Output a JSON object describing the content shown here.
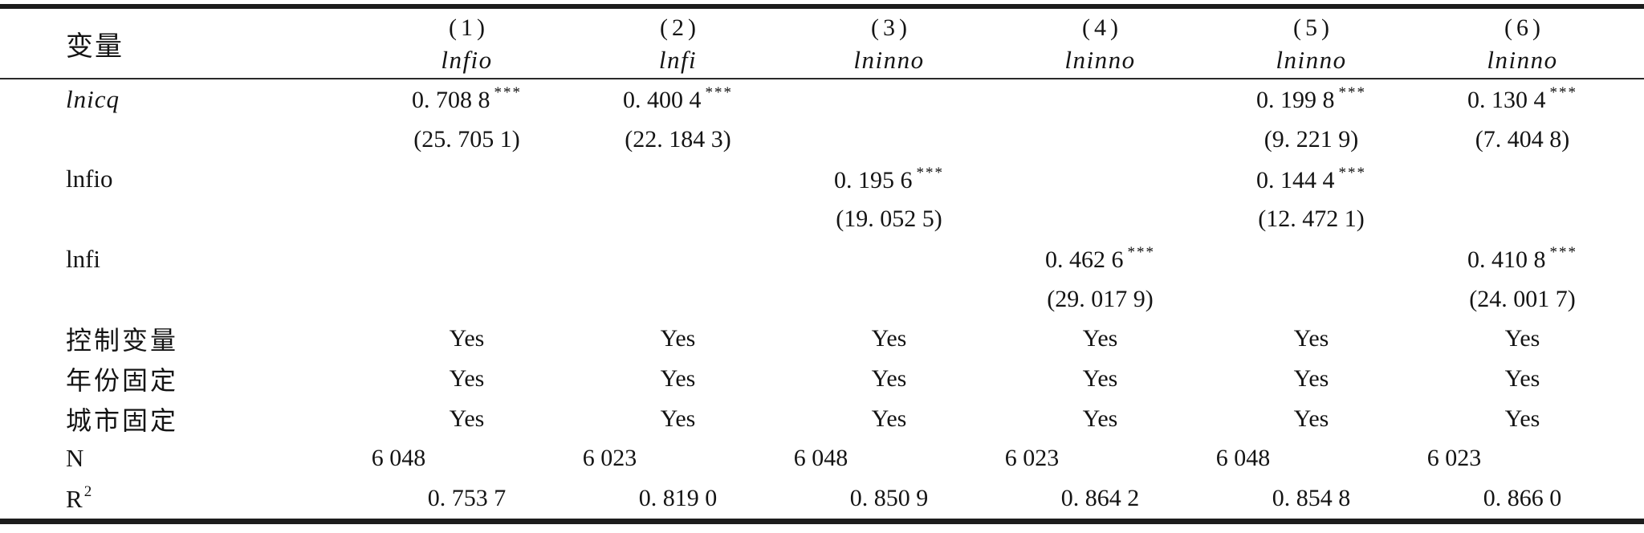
{
  "table": {
    "header_label": "变量",
    "columns": [
      {
        "num": "(1)",
        "dep": "lnfio"
      },
      {
        "num": "(2)",
        "dep": "lnfi"
      },
      {
        "num": "(3)",
        "dep": "lninno"
      },
      {
        "num": "(4)",
        "dep": "lninno"
      },
      {
        "num": "(5)",
        "dep": "lninno"
      },
      {
        "num": "(6)",
        "dep": "lninno"
      }
    ],
    "rows": [
      {
        "name": "lnicq-coef",
        "label": "lnicq",
        "label_style": "italic",
        "cells": [
          {
            "t": "0. 708 8",
            "s": "***"
          },
          {
            "t": "0. 400 4",
            "s": "***"
          },
          null,
          null,
          {
            "t": "0. 199 8",
            "s": "***"
          },
          {
            "t": "0. 130 4",
            "s": "***"
          }
        ]
      },
      {
        "name": "lnicq-tstat",
        "label": "",
        "cells": [
          {
            "t": "(25. 705 1)"
          },
          {
            "t": "(22. 184 3)"
          },
          null,
          null,
          {
            "t": "(9. 221 9)"
          },
          {
            "t": "(7. 404 8)"
          }
        ]
      },
      {
        "name": "lnfio-coef",
        "label": "lnfio",
        "cells": [
          null,
          null,
          {
            "t": "0. 195 6",
            "s": "***"
          },
          null,
          {
            "t": "0. 144 4",
            "s": "***"
          },
          null
        ]
      },
      {
        "name": "lnfio-tstat",
        "label": "",
        "cells": [
          null,
          null,
          {
            "t": "(19. 052 5)"
          },
          null,
          {
            "t": "(12. 472 1)"
          },
          null
        ]
      },
      {
        "name": "lnfi-coef",
        "label": "lnfi",
        "cells": [
          null,
          null,
          null,
          {
            "t": "0. 462 6",
            "s": "***"
          },
          null,
          {
            "t": "0. 410 8",
            "s": "***"
          }
        ]
      },
      {
        "name": "lnfi-tstat",
        "label": "",
        "cells": [
          null,
          null,
          null,
          {
            "t": "(29. 017 9)"
          },
          null,
          {
            "t": "(24. 001 7)"
          }
        ]
      },
      {
        "name": "controls",
        "label": "控制变量",
        "label_style": "cjk",
        "cells": [
          {
            "t": "Yes"
          },
          {
            "t": "Yes"
          },
          {
            "t": "Yes"
          },
          {
            "t": "Yes"
          },
          {
            "t": "Yes"
          },
          {
            "t": "Yes"
          }
        ]
      },
      {
        "name": "year-fixed-effects",
        "label": "年份固定",
        "label_style": "cjk",
        "cells": [
          {
            "t": "Yes"
          },
          {
            "t": "Yes"
          },
          {
            "t": "Yes"
          },
          {
            "t": "Yes"
          },
          {
            "t": "Yes"
          },
          {
            "t": "Yes"
          }
        ]
      },
      {
        "name": "city-fixed-effects",
        "label": "城市固定",
        "label_style": "cjk",
        "cells": [
          {
            "t": "Yes"
          },
          {
            "t": "Yes"
          },
          {
            "t": "Yes"
          },
          {
            "t": "Yes"
          },
          {
            "t": "Yes"
          },
          {
            "t": "Yes"
          }
        ]
      },
      {
        "name": "observations",
        "label": "N",
        "shift": "left",
        "cells": [
          {
            "t": "6 048"
          },
          {
            "t": "6 023"
          },
          {
            "t": "6 048"
          },
          {
            "t": "6 023"
          },
          {
            "t": "6 048"
          },
          {
            "t": "6 023"
          }
        ]
      },
      {
        "name": "r-squared",
        "label": "R",
        "label_sup": "2",
        "cells": [
          {
            "t": "0. 753 7"
          },
          {
            "t": "0. 819 0"
          },
          {
            "t": "0. 850 9"
          },
          {
            "t": "0. 864 2"
          },
          {
            "t": "0. 854 8"
          },
          {
            "t": "0. 866 0"
          }
        ]
      }
    ]
  }
}
